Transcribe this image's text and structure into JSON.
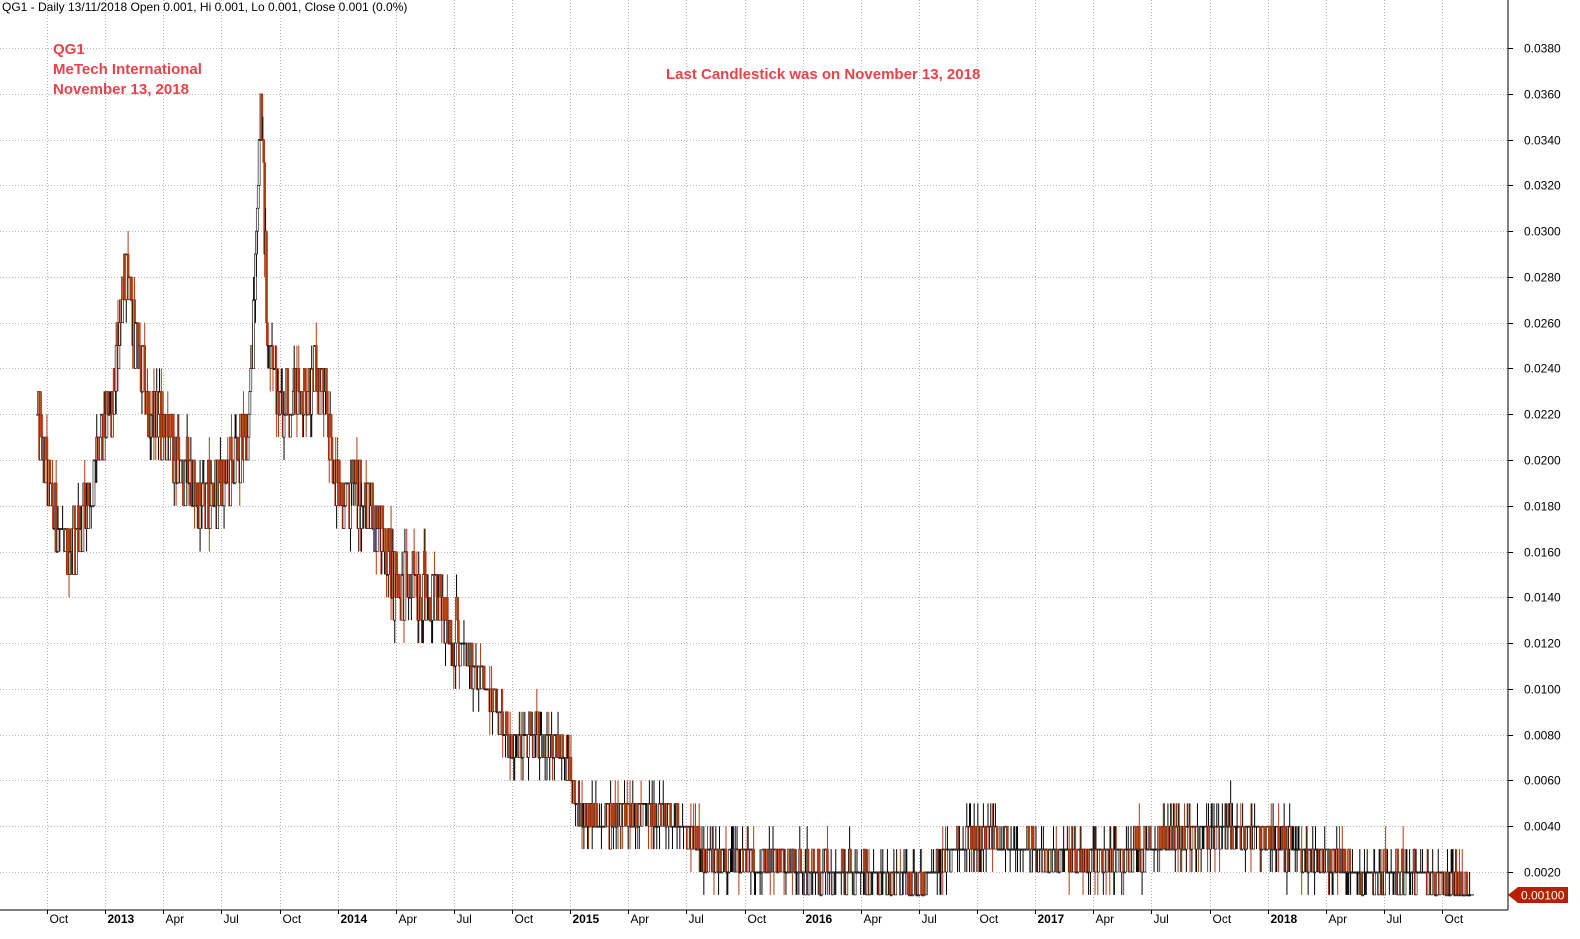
{
  "header": {
    "title": "QG1 - Daily 13/11/2018 Open 0.001, Hi 0.001, Lo 0.001, Close 0.001 (0.0%)"
  },
  "annotations": {
    "ticker": "QG1",
    "company": "MeTech International",
    "date": "November 13, 2018",
    "last_candle": "Last Candlestick was on November 13, 2018"
  },
  "colors": {
    "up": "#000000",
    "down": "#b03a10",
    "annotation": "#e8434a",
    "last_price_badge": "#b81e00",
    "grid": "#b8b8b8"
  },
  "chart_data": {
    "type": "candlestick",
    "symbol": "QG1",
    "interval": "Daily",
    "last_bar": {
      "date": "13/11/2018",
      "open": 0.001,
      "high": 0.001,
      "low": 0.001,
      "close": 0.001,
      "change_pct": "0.0%"
    },
    "last_price_label": "0.00100",
    "ylim": [
      0.0,
      0.039
    ],
    "y_ticks": [
      "0.0020",
      "0.0040",
      "0.0060",
      "0.0080",
      "0.0100",
      "0.0120",
      "0.0140",
      "0.0160",
      "0.0180",
      "0.0200",
      "0.0220",
      "0.0240",
      "0.0260",
      "0.0280",
      "0.0300",
      "0.0320",
      "0.0340",
      "0.0360",
      "0.0380"
    ],
    "x_range": [
      2012.71,
      2018.95
    ],
    "x_ticks": [
      {
        "label": "Oct",
        "t": 2012.75,
        "bold": false
      },
      {
        "label": "2013",
        "t": 2013.0,
        "bold": true
      },
      {
        "label": "Apr",
        "t": 2013.25,
        "bold": false
      },
      {
        "label": "Jul",
        "t": 2013.5,
        "bold": false
      },
      {
        "label": "Oct",
        "t": 2013.75,
        "bold": false
      },
      {
        "label": "2014",
        "t": 2014.0,
        "bold": true
      },
      {
        "label": "Apr",
        "t": 2014.25,
        "bold": false
      },
      {
        "label": "Jul",
        "t": 2014.5,
        "bold": false
      },
      {
        "label": "Oct",
        "t": 2014.75,
        "bold": false
      },
      {
        "label": "2015",
        "t": 2015.0,
        "bold": true
      },
      {
        "label": "Apr",
        "t": 2015.25,
        "bold": false
      },
      {
        "label": "Jul",
        "t": 2015.5,
        "bold": false
      },
      {
        "label": "Oct",
        "t": 2015.75,
        "bold": false
      },
      {
        "label": "2016",
        "t": 2016.0,
        "bold": true
      },
      {
        "label": "Apr",
        "t": 2016.25,
        "bold": false
      },
      {
        "label": "Jul",
        "t": 2016.5,
        "bold": false
      },
      {
        "label": "Oct",
        "t": 2016.75,
        "bold": false
      },
      {
        "label": "2017",
        "t": 2017.0,
        "bold": true
      },
      {
        "label": "Apr",
        "t": 2017.25,
        "bold": false
      },
      {
        "label": "Jul",
        "t": 2017.5,
        "bold": false
      },
      {
        "label": "Oct",
        "t": 2017.75,
        "bold": false
      },
      {
        "label": "2018",
        "t": 2018.0,
        "bold": true
      },
      {
        "label": "Apr",
        "t": 2018.25,
        "bold": false
      },
      {
        "label": "Jul",
        "t": 2018.5,
        "bold": false
      },
      {
        "label": "Oct",
        "t": 2018.75,
        "bold": false
      }
    ],
    "approx_price_path": [
      [
        2012.71,
        0.0215
      ],
      [
        2012.78,
        0.0175
      ],
      [
        2012.82,
        0.016
      ],
      [
        2012.86,
        0.0165
      ],
      [
        2012.92,
        0.018
      ],
      [
        2012.97,
        0.02
      ],
      [
        2013.03,
        0.022
      ],
      [
        2013.08,
        0.0285
      ],
      [
        2013.12,
        0.026
      ],
      [
        2013.17,
        0.023
      ],
      [
        2013.25,
        0.0215
      ],
      [
        2013.32,
        0.02
      ],
      [
        2013.42,
        0.018
      ],
      [
        2013.52,
        0.019
      ],
      [
        2013.62,
        0.0215
      ],
      [
        2013.67,
        0.036
      ],
      [
        2013.7,
        0.025
      ],
      [
        2013.76,
        0.0225
      ],
      [
        2013.85,
        0.023
      ],
      [
        2013.93,
        0.0235
      ],
      [
        2014.0,
        0.0185
      ],
      [
        2014.08,
        0.0185
      ],
      [
        2014.17,
        0.0175
      ],
      [
        2014.25,
        0.0145
      ],
      [
        2014.35,
        0.0145
      ],
      [
        2014.45,
        0.0135
      ],
      [
        2014.55,
        0.0115
      ],
      [
        2014.65,
        0.01
      ],
      [
        2014.75,
        0.0075
      ],
      [
        2014.85,
        0.008
      ],
      [
        2014.95,
        0.0075
      ],
      [
        2015.05,
        0.0045
      ],
      [
        2015.15,
        0.004
      ],
      [
        2015.25,
        0.0045
      ],
      [
        2015.35,
        0.0045
      ],
      [
        2015.5,
        0.004
      ],
      [
        2015.6,
        0.0025
      ],
      [
        2015.75,
        0.0025
      ],
      [
        2016.0,
        0.002
      ],
      [
        2016.25,
        0.002
      ],
      [
        2016.5,
        0.0015
      ],
      [
        2016.65,
        0.003
      ],
      [
        2016.8,
        0.0035
      ],
      [
        2017.0,
        0.003
      ],
      [
        2017.3,
        0.0025
      ],
      [
        2017.6,
        0.0035
      ],
      [
        2017.8,
        0.004
      ],
      [
        2018.0,
        0.0035
      ],
      [
        2018.1,
        0.003
      ],
      [
        2018.25,
        0.0025
      ],
      [
        2018.4,
        0.002
      ],
      [
        2018.5,
        0.002
      ],
      [
        2018.62,
        0.002
      ],
      [
        2018.75,
        0.0015
      ],
      [
        2018.87,
        0.001
      ]
    ]
  }
}
